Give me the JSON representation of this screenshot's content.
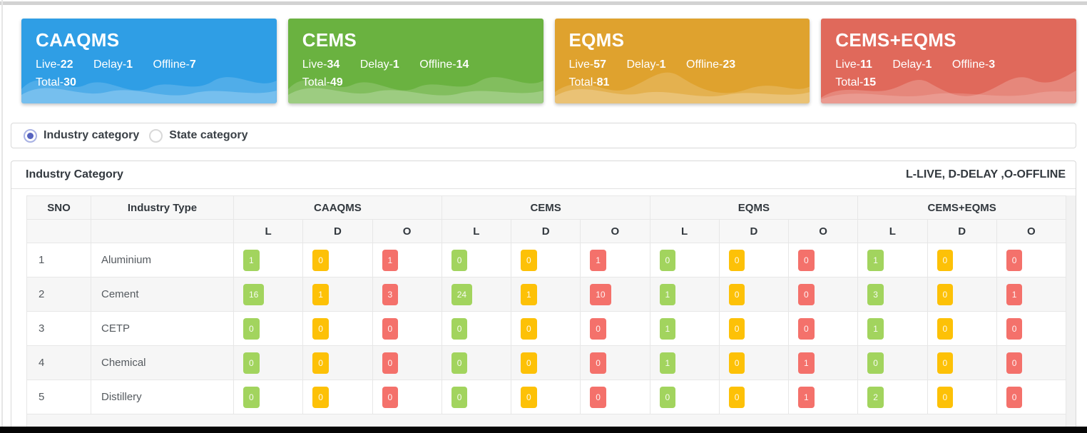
{
  "cards": [
    {
      "title": "CAAQMS",
      "live_label": "Live",
      "delay_label": "Delay",
      "offline_label": "Offline",
      "total_label": "Total",
      "live": "22",
      "delay": "1",
      "offline": "7",
      "total": "30",
      "color": "#2f9ee5"
    },
    {
      "title": "CEMS",
      "live_label": "Live",
      "delay_label": "Delay",
      "offline_label": "Offline",
      "total_label": "Total",
      "live": "34",
      "delay": "1",
      "offline": "14",
      "total": "49",
      "color": "#6ab240"
    },
    {
      "title": "EQMS",
      "live_label": "Live",
      "delay_label": "Delay",
      "offline_label": "Offline",
      "total_label": "Total",
      "live": "57",
      "delay": "1",
      "offline": "23",
      "total": "81",
      "color": "#dfa22e"
    },
    {
      "title": "CEMS+EQMS",
      "live_label": "Live",
      "delay_label": "Delay",
      "offline_label": "Offline",
      "total_label": "Total",
      "live": "11",
      "delay": "1",
      "offline": "3",
      "total": "15",
      "color": "#e0695b"
    }
  ],
  "filters": {
    "options": [
      {
        "label": "Industry category",
        "selected": true
      },
      {
        "label": "State category",
        "selected": false
      }
    ],
    "accent_color": "#5663bf"
  },
  "table": {
    "title": "Industry Category",
    "legend": "L-LIVE, D-DELAY ,O-OFFLINE",
    "sno_header": "SNO",
    "industry_header": "Industry Type",
    "group_headers": [
      "CAAQMS",
      "CEMS",
      "EQMS",
      "CEMS+EQMS"
    ],
    "sub_headers": [
      "L",
      "D",
      "O"
    ],
    "status_colors": {
      "L": "#a2d45e",
      "D": "#fdc107",
      "O": "#f4716b"
    },
    "rows": [
      {
        "sno": "1",
        "industry": "Aluminium",
        "values": [
          1,
          0,
          1,
          0,
          0,
          1,
          0,
          0,
          0,
          1,
          0,
          0
        ]
      },
      {
        "sno": "2",
        "industry": "Cement",
        "values": [
          16,
          1,
          3,
          24,
          1,
          10,
          1,
          0,
          0,
          3,
          0,
          1
        ]
      },
      {
        "sno": "3",
        "industry": "CETP",
        "values": [
          0,
          0,
          0,
          0,
          0,
          0,
          1,
          0,
          0,
          1,
          0,
          0
        ]
      },
      {
        "sno": "4",
        "industry": "Chemical",
        "values": [
          0,
          0,
          0,
          0,
          0,
          0,
          1,
          0,
          1,
          0,
          0,
          0
        ]
      },
      {
        "sno": "5",
        "industry": "Distillery",
        "values": [
          0,
          0,
          0,
          0,
          0,
          0,
          0,
          0,
          1,
          2,
          0,
          0
        ]
      }
    ]
  }
}
